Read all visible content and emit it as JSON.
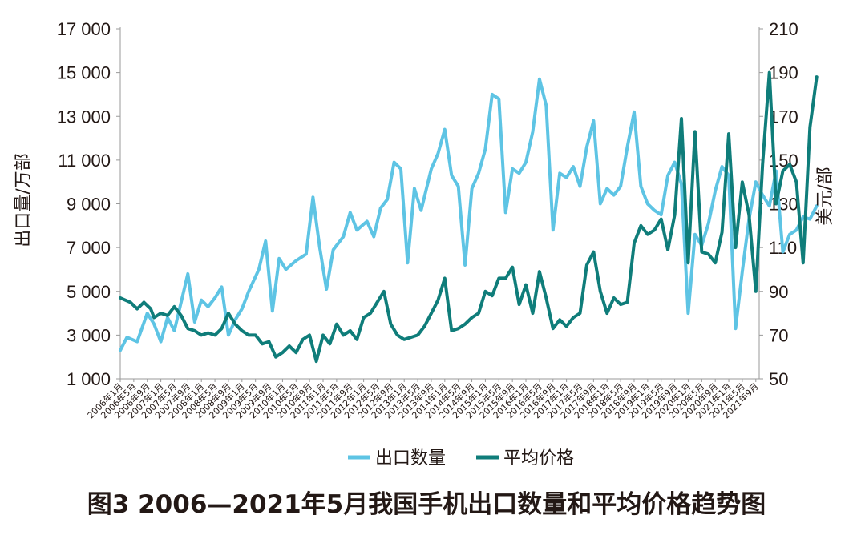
{
  "chart_data": {
    "type": "line",
    "title": "图3  2006—2021年5月我国手机出口数量和平均价格趋势图",
    "y_left_label": "出口量/万部",
    "y_right_label": "美元/部",
    "y_left_range": [
      1000,
      17000
    ],
    "y_right_range": [
      50,
      210
    ],
    "y_left_ticks": [
      "17 000",
      "15 000",
      "13 000",
      "11 000",
      "9 000",
      "7 000",
      "5 000",
      "3 000",
      "1 000"
    ],
    "y_left_tick_values": [
      17000,
      15000,
      13000,
      11000,
      9000,
      7000,
      5000,
      3000,
      1000
    ],
    "y_right_ticks": [
      "210",
      "190",
      "170",
      "150",
      "130",
      "110",
      "90",
      "70",
      "50"
    ],
    "y_right_tick_values": [
      210,
      190,
      170,
      150,
      130,
      110,
      90,
      70,
      50
    ],
    "x_tick_labels": [
      "2006年1月",
      "2006年5月",
      "2006年9月",
      "2007年1月",
      "2007年5月",
      "2007年9月",
      "2008年1月",
      "2008年5月",
      "2008年9月",
      "2009年1月",
      "2009年5月",
      "2009年9月",
      "2010年1月",
      "2010年5月",
      "2010年9月",
      "2011年1月",
      "2011年5月",
      "2011年9月",
      "2012年1月",
      "2012年5月",
      "2012年9月",
      "2013年1月",
      "2013年5月",
      "2013年9月",
      "2014年1月",
      "2014年5月",
      "2014年9月",
      "2015年1月",
      "2015年5月",
      "2015年9月",
      "2016年1月",
      "2016年5月",
      "2016年9月",
      "2017年1月",
      "2017年5月",
      "2017年9月",
      "2018年1月",
      "2018年5月",
      "2018年9月",
      "2019年1月",
      "2019年5月",
      "2019年9月",
      "2020年1月",
      "2020年5月",
      "2020年9月",
      "2021年1月",
      "2021年5月",
      "2021年9月"
    ],
    "legend_position": "bottom-center",
    "grid": false,
    "series": [
      {
        "name": "出口数量",
        "axis": "left",
        "color": "#5ec4e4",
        "points": [
          [
            0,
            2300
          ],
          [
            2,
            2900
          ],
          [
            5,
            2700
          ],
          [
            8,
            4000
          ],
          [
            10,
            3500
          ],
          [
            12,
            2700
          ],
          [
            14,
            3800
          ],
          [
            16,
            3200
          ],
          [
            18,
            4500
          ],
          [
            20,
            5800
          ],
          [
            22,
            3600
          ],
          [
            24,
            4600
          ],
          [
            26,
            4300
          ],
          [
            28,
            4700
          ],
          [
            30,
            5200
          ],
          [
            32,
            3000
          ],
          [
            34,
            3700
          ],
          [
            36,
            4200
          ],
          [
            38,
            5000
          ],
          [
            41,
            6000
          ],
          [
            43,
            7300
          ],
          [
            45,
            4100
          ],
          [
            47,
            6500
          ],
          [
            49,
            6000
          ],
          [
            52,
            6400
          ],
          [
            55,
            6700
          ],
          [
            57,
            9300
          ],
          [
            59,
            7000
          ],
          [
            61,
            5100
          ],
          [
            63,
            6900
          ],
          [
            66,
            7500
          ],
          [
            68,
            8600
          ],
          [
            70,
            7800
          ],
          [
            73,
            8200
          ],
          [
            75,
            7500
          ],
          [
            77,
            8800
          ],
          [
            79,
            9200
          ],
          [
            81,
            10900
          ],
          [
            83,
            10600
          ],
          [
            85,
            6300
          ],
          [
            87,
            9700
          ],
          [
            89,
            8700
          ],
          [
            92,
            10600
          ],
          [
            94,
            11300
          ],
          [
            96,
            12400
          ],
          [
            98,
            10300
          ],
          [
            100,
            9800
          ],
          [
            102,
            6200
          ],
          [
            104,
            9700
          ],
          [
            106,
            10400
          ],
          [
            108,
            11500
          ],
          [
            110,
            14000
          ],
          [
            112,
            13800
          ],
          [
            114,
            8600
          ],
          [
            116,
            10600
          ],
          [
            118,
            10400
          ],
          [
            120,
            10900
          ],
          [
            122,
            12300
          ],
          [
            124,
            14700
          ],
          [
            126,
            13500
          ],
          [
            128,
            7800
          ],
          [
            130,
            10400
          ],
          [
            132,
            10200
          ],
          [
            134,
            10700
          ],
          [
            136,
            9800
          ],
          [
            138,
            11600
          ],
          [
            140,
            12800
          ],
          [
            142,
            9000
          ],
          [
            144,
            9700
          ],
          [
            146,
            9400
          ],
          [
            148,
            9800
          ],
          [
            150,
            11600
          ],
          [
            152,
            13200
          ],
          [
            154,
            9800
          ],
          [
            156,
            9000
          ],
          [
            158,
            8700
          ],
          [
            160,
            8500
          ],
          [
            162,
            10300
          ],
          [
            164,
            10900
          ],
          [
            166,
            9900
          ],
          [
            168,
            4000
          ],
          [
            170,
            7600
          ],
          [
            172,
            7100
          ],
          [
            174,
            8100
          ],
          [
            176,
            9600
          ],
          [
            178,
            10700
          ],
          [
            180,
            10300
          ],
          [
            182,
            3300
          ],
          [
            184,
            5900
          ],
          [
            186,
            8300
          ],
          [
            188,
            10000
          ],
          [
            190,
            9400
          ],
          [
            192,
            8900
          ],
          [
            194,
            10500
          ],
          [
            196,
            6800
          ],
          [
            198,
            7600
          ],
          [
            200,
            7800
          ],
          [
            202,
            8400
          ],
          [
            204,
            8300
          ],
          [
            206,
            8900
          ]
        ]
      },
      {
        "name": "平均价格",
        "axis": "right",
        "color": "#0f7d7a",
        "points": [
          [
            0,
            87
          ],
          [
            3,
            85
          ],
          [
            5,
            82
          ],
          [
            7,
            85
          ],
          [
            9,
            82
          ],
          [
            10,
            78
          ],
          [
            12,
            80
          ],
          [
            14,
            79
          ],
          [
            16,
            83
          ],
          [
            18,
            79
          ],
          [
            20,
            73
          ],
          [
            22,
            72
          ],
          [
            24,
            70
          ],
          [
            26,
            71
          ],
          [
            28,
            70
          ],
          [
            30,
            73
          ],
          [
            32,
            80
          ],
          [
            34,
            75
          ],
          [
            36,
            72
          ],
          [
            38,
            70
          ],
          [
            40,
            70
          ],
          [
            42,
            66
          ],
          [
            44,
            67
          ],
          [
            46,
            60
          ],
          [
            48,
            62
          ],
          [
            50,
            65
          ],
          [
            52,
            62
          ],
          [
            54,
            68
          ],
          [
            56,
            70
          ],
          [
            58,
            58
          ],
          [
            60,
            70
          ],
          [
            62,
            66
          ],
          [
            64,
            75
          ],
          [
            66,
            70
          ],
          [
            68,
            72
          ],
          [
            70,
            68
          ],
          [
            72,
            78
          ],
          [
            74,
            80
          ],
          [
            76,
            85
          ],
          [
            78,
            90
          ],
          [
            80,
            75
          ],
          [
            82,
            70
          ],
          [
            84,
            68
          ],
          [
            86,
            69
          ],
          [
            88,
            70
          ],
          [
            90,
            74
          ],
          [
            92,
            80
          ],
          [
            94,
            86
          ],
          [
            96,
            96
          ],
          [
            98,
            72
          ],
          [
            100,
            73
          ],
          [
            102,
            75
          ],
          [
            104,
            78
          ],
          [
            106,
            80
          ],
          [
            108,
            90
          ],
          [
            110,
            88
          ],
          [
            112,
            96
          ],
          [
            114,
            96
          ],
          [
            116,
            101
          ],
          [
            118,
            84
          ],
          [
            120,
            93
          ],
          [
            122,
            80
          ],
          [
            124,
            99
          ],
          [
            126,
            87
          ],
          [
            128,
            73
          ],
          [
            130,
            77
          ],
          [
            132,
            74
          ],
          [
            134,
            78
          ],
          [
            136,
            80
          ],
          [
            138,
            102
          ],
          [
            140,
            108
          ],
          [
            142,
            90
          ],
          [
            144,
            80
          ],
          [
            146,
            87
          ],
          [
            148,
            84
          ],
          [
            150,
            85
          ],
          [
            152,
            112
          ],
          [
            154,
            120
          ],
          [
            156,
            116
          ],
          [
            158,
            118
          ],
          [
            160,
            123
          ],
          [
            162,
            109
          ],
          [
            164,
            125
          ],
          [
            166,
            169
          ],
          [
            168,
            103
          ],
          [
            170,
            163
          ],
          [
            172,
            108
          ],
          [
            174,
            107
          ],
          [
            176,
            103
          ],
          [
            178,
            117
          ],
          [
            180,
            162
          ],
          [
            182,
            110
          ],
          [
            184,
            140
          ],
          [
            186,
            125
          ],
          [
            188,
            90
          ],
          [
            190,
            148
          ],
          [
            192,
            190
          ],
          [
            194,
            130
          ],
          [
            196,
            145
          ],
          [
            198,
            148
          ],
          [
            200,
            140
          ],
          [
            202,
            103
          ],
          [
            204,
            165
          ],
          [
            206,
            188
          ]
        ]
      }
    ]
  }
}
